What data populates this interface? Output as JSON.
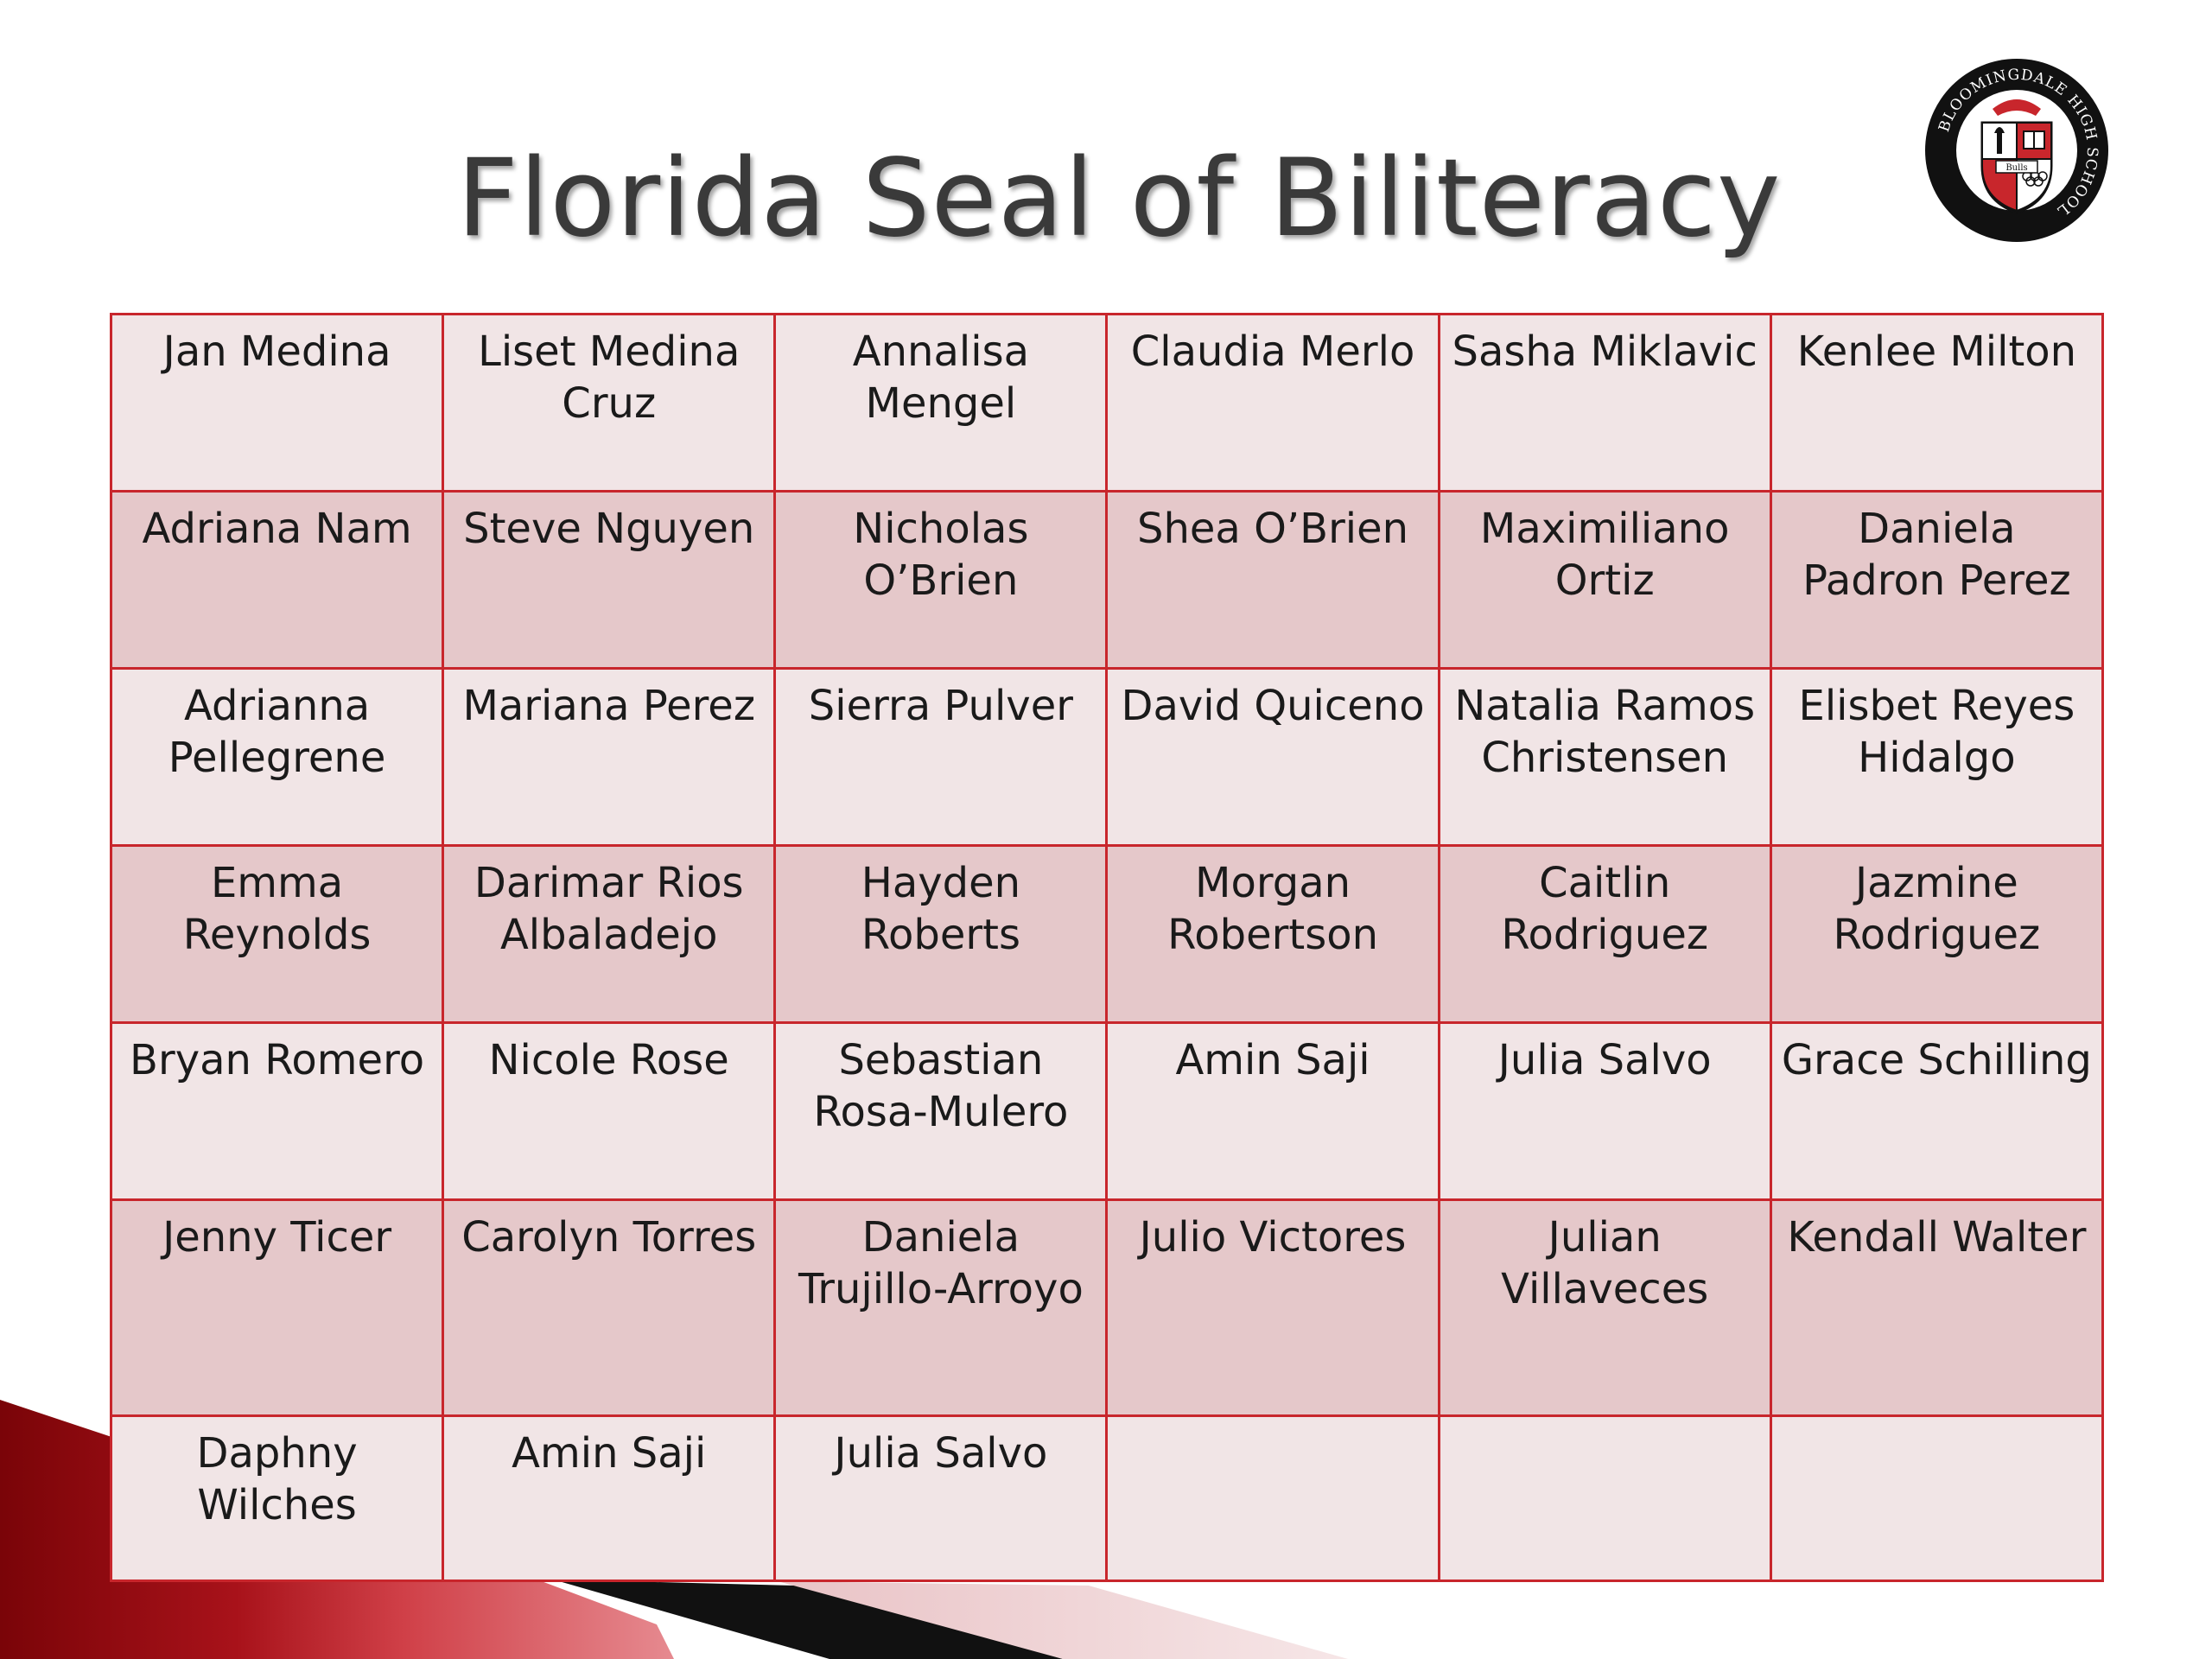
{
  "slide": {
    "title": "Florida Seal of Biliteracy",
    "seal": {
      "ring_text": "BLOOMINGDALE HIGH SCHOOL",
      "motto": "Bulls",
      "colors": {
        "ring": "#111111",
        "red": "#c8262c",
        "white": "#ffffff"
      },
      "icons": [
        "bull-icon",
        "torch-icon",
        "book-icon",
        "olympic-rings-icon"
      ]
    },
    "colors": {
      "border": "#c8262c",
      "row_light": "#f1e5e6",
      "row_dark": "#e5c8ca",
      "title": "#3a3a3a",
      "accent_red": "#8e0a10"
    },
    "rows": [
      [
        "Jan Medina",
        "Liset Medina Cruz",
        "Annalisa Mengel",
        "Claudia Merlo",
        "Sasha Miklavic",
        "Kenlee Milton"
      ],
      [
        "Adriana Nam",
        "Steve Nguyen",
        "Nicholas O’Brien",
        "Shea O’Brien",
        "Maximiliano Ortiz",
        "Daniela Padron Perez"
      ],
      [
        "Adrianna Pellegrene",
        "Mariana Perez",
        "Sierra Pulver",
        "David Quiceno",
        "Natalia Ramos Christensen",
        "Elisbet Reyes Hidalgo"
      ],
      [
        "Emma Reynolds",
        "Darimar Rios Albaladejo",
        "Hayden Roberts",
        "Morgan Robertson",
        "Caitlin Rodriguez",
        "Jazmine Rodriguez"
      ],
      [
        "Bryan Romero",
        "Nicole Rose",
        "Sebastian Rosa-Mulero",
        "Amin Saji",
        "Julia Salvo",
        "Grace Schilling"
      ],
      [
        "Jenny Ticer",
        "Carolyn Torres",
        "Daniela Trujillo-Arroyo",
        "Julio Victores",
        "Julian Villaveces",
        "Kendall Walter"
      ],
      [
        "Daphny Wilches",
        "Amin Saji",
        "Julia Salvo",
        "",
        "",
        ""
      ]
    ]
  }
}
